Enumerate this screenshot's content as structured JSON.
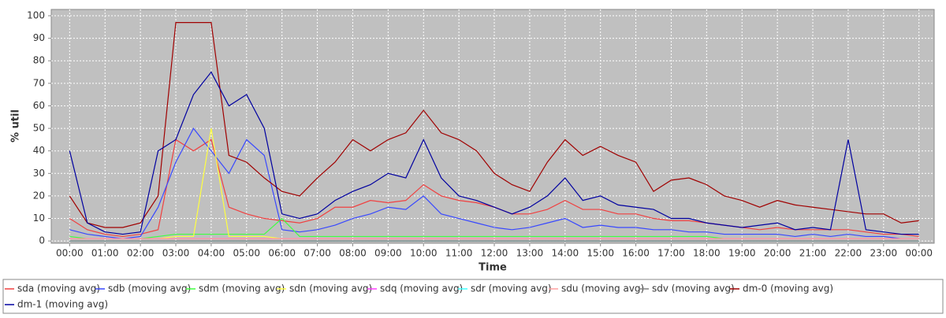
{
  "chart_data": {
    "type": "line",
    "xlabel": "Time",
    "ylabel": "% util",
    "x": [
      0,
      0.5,
      1,
      1.5,
      2,
      2.5,
      3,
      3.5,
      4,
      4.5,
      5,
      5.5,
      6,
      6.5,
      7,
      7.5,
      8,
      8.5,
      9,
      9.5,
      10,
      10.5,
      11,
      11.5,
      12,
      12.5,
      13,
      13.5,
      14,
      14.5,
      15,
      15.5,
      16,
      16.5,
      17,
      17.5,
      18,
      18.5,
      19,
      19.5,
      20,
      20.5,
      21,
      21.5,
      22,
      22.5,
      23,
      23.5,
      24
    ],
    "xlim": [
      -0.52,
      24.43
    ],
    "xticks": [
      {
        "value": 0,
        "label": "00:00"
      },
      {
        "value": 1,
        "label": "01:00"
      },
      {
        "value": 2,
        "label": "02:00"
      },
      {
        "value": 3,
        "label": "03:00"
      },
      {
        "value": 4,
        "label": "04:00"
      },
      {
        "value": 5,
        "label": "05:00"
      },
      {
        "value": 6,
        "label": "06:00"
      },
      {
        "value": 7,
        "label": "07:00"
      },
      {
        "value": 8,
        "label": "08:00"
      },
      {
        "value": 9,
        "label": "09:00"
      },
      {
        "value": 10,
        "label": "10:00"
      },
      {
        "value": 11,
        "label": "11:00"
      },
      {
        "value": 12,
        "label": "12:00"
      },
      {
        "value": 13,
        "label": "13:00"
      },
      {
        "value": 14,
        "label": "14:00"
      },
      {
        "value": 15,
        "label": "15:00"
      },
      {
        "value": 16,
        "label": "16:00"
      },
      {
        "value": 17,
        "label": "17:00"
      },
      {
        "value": 18,
        "label": "18:00"
      },
      {
        "value": 19,
        "label": "19:00"
      },
      {
        "value": 20,
        "label": "20:00"
      },
      {
        "value": 21,
        "label": "21:00"
      },
      {
        "value": 22,
        "label": "22:00"
      },
      {
        "value": 23,
        "label": "23:00"
      },
      {
        "value": 24,
        "label": "00:00"
      }
    ],
    "ylim": [
      -1,
      102.8
    ],
    "yticks": [
      0,
      10,
      20,
      30,
      40,
      50,
      60,
      70,
      80,
      90,
      100
    ],
    "grid": true,
    "legend": "bottom",
    "series": [
      {
        "name": "sda (moving avg)",
        "color": "#f04040",
        "values": [
          10,
          5,
          3,
          2,
          3,
          5,
          45,
          40,
          45,
          15,
          12,
          10,
          9,
          8,
          10,
          15,
          15,
          18,
          17,
          18,
          25,
          20,
          18,
          17,
          15,
          12,
          12,
          14,
          18,
          14,
          14,
          12,
          12,
          10,
          9,
          9,
          8,
          7,
          6,
          5,
          6,
          5,
          5,
          5,
          5,
          4,
          3,
          3,
          2
        ]
      },
      {
        "name": "sdb (moving avg)",
        "color": "#3848ff",
        "values": [
          5,
          3,
          2,
          1,
          2,
          15,
          35,
          50,
          40,
          30,
          45,
          38,
          5,
          4,
          5,
          7,
          10,
          12,
          15,
          14,
          20,
          12,
          10,
          8,
          6,
          5,
          6,
          8,
          10,
          6,
          7,
          6,
          6,
          5,
          5,
          4,
          4,
          3,
          3,
          3,
          3,
          2,
          3,
          2,
          3,
          2,
          2,
          1,
          1
        ]
      },
      {
        "name": "sdm (moving avg)",
        "color": "#40ff40",
        "values": [
          2,
          1,
          1,
          1,
          1,
          2,
          3,
          3,
          3,
          3,
          3,
          3,
          10,
          2,
          2,
          2,
          2,
          2,
          2,
          2,
          2,
          2,
          2,
          2,
          2,
          2,
          2,
          2,
          2,
          2,
          2,
          2,
          2,
          2,
          2,
          2,
          2,
          1,
          1,
          1,
          1,
          1,
          1,
          1,
          1,
          1,
          1,
          1,
          1
        ]
      },
      {
        "name": "sdn (moving avg)",
        "color": "#ffff40",
        "values": [
          1,
          1,
          1,
          1,
          1,
          1,
          2,
          2,
          50,
          2,
          2,
          2,
          1,
          1,
          1,
          1,
          1,
          1,
          1,
          1,
          1,
          1,
          1,
          1,
          1,
          1,
          1,
          1,
          1,
          1,
          1,
          1,
          1,
          1,
          1,
          1,
          1,
          1,
          1,
          1,
          1,
          1,
          1,
          1,
          1,
          1,
          1,
          1,
          1
        ]
      },
      {
        "name": "sdq (moving avg)",
        "color": "#ff40ff",
        "values": [
          1,
          1,
          1,
          1,
          1,
          1,
          1,
          1,
          1,
          1,
          1,
          1,
          1,
          1,
          1,
          1,
          1,
          1,
          1,
          1,
          1,
          1,
          1,
          1,
          1,
          1,
          1,
          1,
          1,
          1,
          1,
          1,
          1,
          1,
          1,
          1,
          1,
          1,
          1,
          1,
          1,
          1,
          1,
          1,
          1,
          1,
          1,
          1,
          1
        ]
      },
      {
        "name": "sdr (moving avg)",
        "color": "#40ffff",
        "values": [
          0,
          0,
          0,
          0,
          0,
          0,
          0,
          0,
          0,
          0,
          0,
          0,
          0,
          0,
          0,
          0,
          0,
          0,
          0,
          0,
          0,
          0,
          0,
          0,
          0,
          0,
          0,
          0,
          0,
          0,
          0,
          0,
          0,
          0,
          0,
          0,
          0,
          0,
          0,
          0,
          0,
          0,
          0,
          0,
          0,
          0,
          0,
          0,
          0
        ]
      },
      {
        "name": "sdu (moving avg)",
        "color": "#ffa0a0",
        "values": [
          1,
          1,
          1,
          1,
          1,
          1,
          1,
          1,
          1,
          1,
          1,
          1,
          1,
          1,
          1,
          1,
          1,
          1,
          1,
          1,
          1,
          1,
          1,
          1,
          1,
          1,
          1,
          1,
          1,
          1,
          1,
          1,
          1,
          1,
          1,
          1,
          1,
          1,
          1,
          1,
          1,
          1,
          1,
          1,
          1,
          1,
          1,
          1,
          1
        ]
      },
      {
        "name": "sdv (moving avg)",
        "color": "#808080",
        "values": [
          0,
          0,
          0,
          0,
          0,
          0,
          0,
          0,
          0,
          0,
          0,
          0,
          0,
          0,
          0,
          0,
          0,
          0,
          0,
          0,
          0,
          0,
          0,
          0,
          0,
          0,
          0,
          0,
          0,
          0,
          0,
          0,
          0,
          0,
          0,
          0,
          0,
          0,
          0,
          0,
          0,
          0,
          0,
          0,
          0,
          0,
          0,
          0,
          0
        ]
      },
      {
        "name": "dm-0 (moving avg)",
        "color": "#a00000",
        "values": [
          20,
          8,
          6,
          6,
          8,
          20,
          97,
          97,
          97,
          38,
          35,
          28,
          22,
          20,
          28,
          35,
          45,
          40,
          45,
          48,
          58,
          48,
          45,
          40,
          30,
          25,
          22,
          35,
          45,
          38,
          42,
          38,
          35,
          22,
          27,
          28,
          25,
          20,
          18,
          15,
          18,
          16,
          15,
          14,
          13,
          12,
          12,
          8,
          9
        ]
      },
      {
        "name": "dm-1 (moving avg)",
        "color": "#0000a0",
        "values": [
          40,
          8,
          4,
          3,
          4,
          40,
          45,
          65,
          75,
          60,
          65,
          50,
          12,
          10,
          12,
          18,
          22,
          25,
          30,
          28,
          45,
          28,
          20,
          18,
          15,
          12,
          15,
          20,
          28,
          18,
          20,
          16,
          15,
          14,
          10,
          10,
          8,
          7,
          6,
          7,
          8,
          5,
          6,
          5,
          45,
          5,
          4,
          3,
          3
        ]
      }
    ]
  }
}
